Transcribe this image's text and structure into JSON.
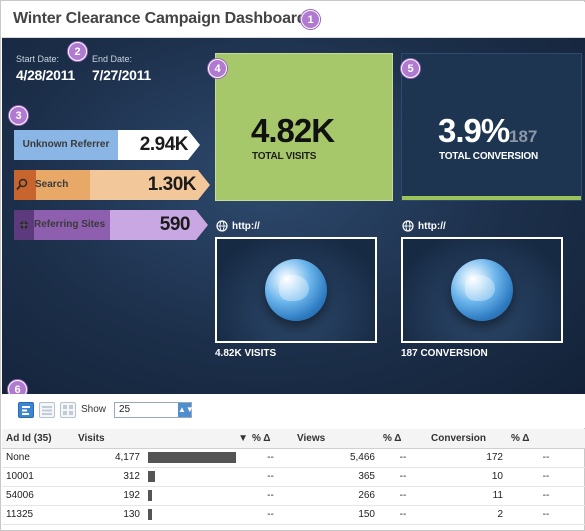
{
  "header": {
    "title": "Winter Clearance Campaign Dashboard"
  },
  "badges": [
    "1",
    "2",
    "3",
    "4",
    "5",
    "6"
  ],
  "dates": {
    "start_label": "Start Date:",
    "start_value": "4/28/2011",
    "end_label": "End Date:",
    "end_value": "7/27/2011"
  },
  "referrers": [
    {
      "label": "Unknown Referrer",
      "value": "2.94K",
      "icon": "none",
      "color": "#8ab6e6",
      "value_bg": "#ffffff"
    },
    {
      "label": "Search",
      "value": "1.30K",
      "icon": "magnifier-icon",
      "color": "#e8a868",
      "value_bg": "#f2c79a"
    },
    {
      "label": "Referring Sites",
      "value": "590",
      "icon": "globe-icon",
      "color": "#8d5fae",
      "value_bg": "#c9a7e2"
    }
  ],
  "visits_tile": {
    "value": "4.82K",
    "label": "TOTAL VISITS",
    "color": "#a7c86a"
  },
  "conversion_tile": {
    "value": "3.9%",
    "count": "187",
    "label": "TOTAL CONVERSION"
  },
  "link_panels": [
    {
      "link": "http://",
      "caption": "4.82K VISITS"
    },
    {
      "link": "http://",
      "caption": "187 CONVERSION"
    }
  ],
  "toolbar": {
    "show_label": "Show",
    "show_value": "25"
  },
  "table": {
    "headers": [
      "Ad Id  (35)",
      "Visits",
      "% Δ",
      "Views",
      "% Δ",
      "Conversion",
      "% Δ"
    ],
    "rows": [
      {
        "id": "None",
        "visits": "4,177",
        "visits_value": 4177,
        "pct1": "--",
        "views": "5,466",
        "pct2": "--",
        "conversion": "172",
        "pct3": "--"
      },
      {
        "id": "10001",
        "visits": "312",
        "visits_value": 312,
        "pct1": "--",
        "views": "365",
        "pct2": "--",
        "conversion": "10",
        "pct3": "--"
      },
      {
        "id": "54006",
        "visits": "192",
        "visits_value": 192,
        "pct1": "--",
        "views": "266",
        "pct2": "--",
        "conversion": "11",
        "pct3": "--"
      },
      {
        "id": "11325",
        "visits": "130",
        "visits_value": 130,
        "pct1": "--",
        "views": "150",
        "pct2": "--",
        "conversion": "2",
        "pct3": "--"
      }
    ]
  }
}
